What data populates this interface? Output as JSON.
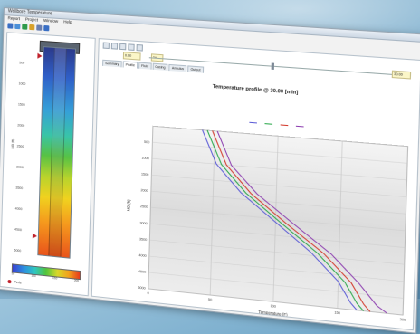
{
  "window": {
    "title": "Wellbore Temperature"
  },
  "menu": [
    "Report",
    "Project",
    "Window",
    "Help"
  ],
  "left_panel": {
    "depth_labels": [
      "500",
      "1000",
      "1500",
      "2000",
      "2500",
      "3000",
      "3500",
      "4000",
      "4500",
      "5000"
    ],
    "depth_unit": "MD (ft)",
    "colorbar_ticks": [
      "50",
      "",
      "100",
      "",
      "150",
      "",
      "200"
    ],
    "legend_label": "Perfs"
  },
  "right_panel": {
    "fields": {
      "start": "0.00",
      "end": "30.00",
      "field_a": "1x",
      "field_b": "30.00"
    },
    "tabs": [
      "Summary",
      "Profile",
      "Fluid",
      "Casing",
      "Annulus",
      "Output"
    ],
    "active_tab_index": 1
  },
  "chart_data": {
    "type": "line",
    "title": "Temperature profile @ 30.00 [min]",
    "xlabel": "Temperature (F)",
    "ylabel": "MD (ft)",
    "xlim": [
      0,
      200
    ],
    "ylim": [
      5000,
      0
    ],
    "x_ticks": [
      "0",
      "50",
      "100",
      "150",
      "200"
    ],
    "y_ticks": [
      "500",
      "1000",
      "1500",
      "2000",
      "2500",
      "3000",
      "3500",
      "4000",
      "4500",
      "5000"
    ],
    "grid": true,
    "legend_position": "top",
    "series": [
      {
        "name": "",
        "color": "#5b5bd6",
        "points": [
          [
            40,
            0
          ],
          [
            52,
            1000
          ],
          [
            72,
            1800
          ],
          [
            100,
            2600
          ],
          [
            128,
            3400
          ],
          [
            150,
            4200
          ],
          [
            160,
            4800
          ],
          [
            165,
            5000
          ]
        ]
      },
      {
        "name": "",
        "color": "#2aa84a",
        "points": [
          [
            44,
            0
          ],
          [
            56,
            1000
          ],
          [
            76,
            1800
          ],
          [
            104,
            2600
          ],
          [
            133,
            3400
          ],
          [
            155,
            4200
          ],
          [
            165,
            4800
          ],
          [
            170,
            5000
          ]
        ]
      },
      {
        "name": "",
        "color": "#d33a2c",
        "points": [
          [
            48,
            0
          ],
          [
            60,
            1000
          ],
          [
            80,
            1800
          ],
          [
            108,
            2600
          ],
          [
            138,
            3400
          ],
          [
            160,
            4200
          ],
          [
            170,
            4800
          ],
          [
            175,
            5000
          ]
        ]
      },
      {
        "name": "",
        "color": "#8d3fb0",
        "points": [
          [
            52,
            0
          ],
          [
            64,
            1000
          ],
          [
            85,
            1800
          ],
          [
            114,
            2600
          ],
          [
            144,
            3400
          ],
          [
            166,
            4200
          ],
          [
            180,
            4800
          ],
          [
            188,
            5000
          ]
        ]
      }
    ]
  }
}
